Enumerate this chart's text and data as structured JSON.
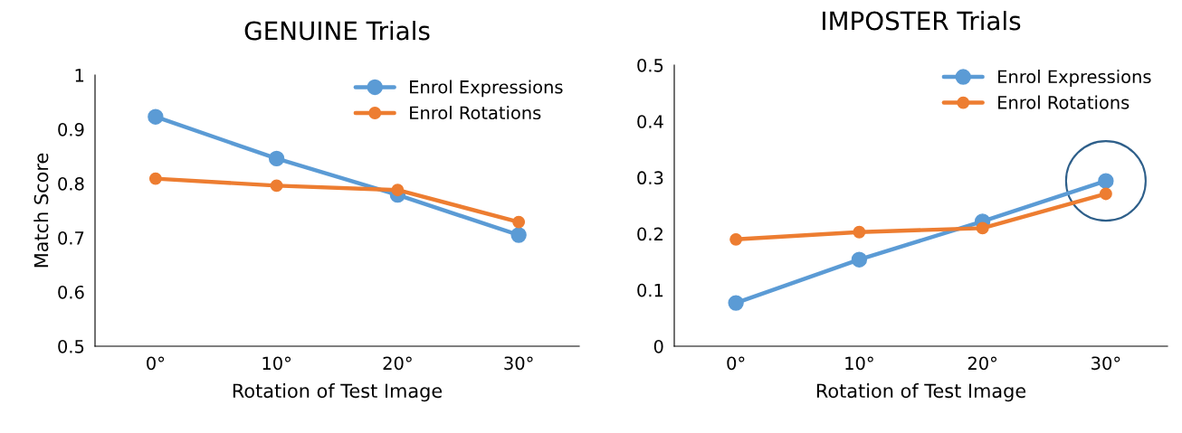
{
  "chart_data": [
    {
      "type": "line",
      "title": "GENUINE Trials",
      "xlabel": "Rotation of Test Image",
      "ylabel": "Match Score",
      "categories": [
        "0°",
        "10°",
        "20°",
        "30°"
      ],
      "series": [
        {
          "name": "Enrol Expressions",
          "color": "#5b9bd5",
          "values": [
            0.923,
            0.846,
            0.779,
            0.705
          ]
        },
        {
          "name": "Enrol Rotations",
          "color": "#ed7d31",
          "values": [
            0.809,
            0.796,
            0.788,
            0.729
          ]
        }
      ],
      "ylim": [
        0.5,
        1
      ],
      "yticks": [
        0.5,
        0.6,
        0.7,
        0.8,
        0.9,
        1
      ],
      "grid": false,
      "legend": "top right",
      "marker": "circle",
      "line_style": "solid"
    },
    {
      "type": "line",
      "title": "IMPOSTER Trials",
      "xlabel": "Rotation of Test Image",
      "categories": [
        "0°",
        "10°",
        "20°",
        "30°"
      ],
      "series": [
        {
          "name": "Enrol Expressions",
          "color": "#5b9bd5",
          "values": [
            0.077,
            0.154,
            0.222,
            0.294
          ]
        },
        {
          "name": "Enrol Rotations",
          "color": "#ed7d31",
          "values": [
            0.19,
            0.203,
            0.21,
            0.271
          ]
        }
      ],
      "ylim": [
        0,
        0.5
      ],
      "yticks": [
        0,
        0.1,
        0.2,
        0.3,
        0.4,
        0.5
      ],
      "grid": false,
      "legend": "top right",
      "marker": "circle",
      "line_style": "solid"
    }
  ]
}
